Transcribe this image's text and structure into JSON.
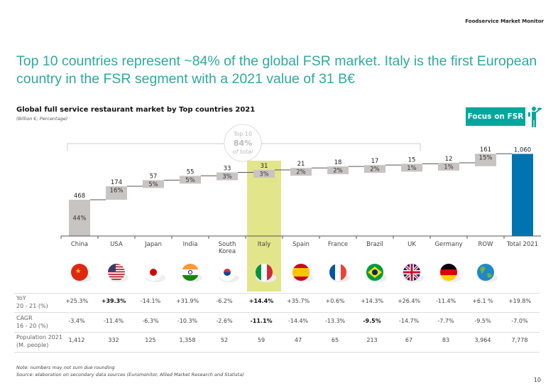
{
  "header": "Foodservice Market Monitor",
  "title": "Top 10 countries represent ~84% of the global FSR market. Italy is the first European country in the FSR segment with a 2021 value of 31 B€",
  "focus_badge": "Focus on FSR",
  "colors": {
    "accent": "#00a79d",
    "step_bar": "#c8c4c2",
    "total_bar": "#0074b0",
    "highlight": "#e3e58a",
    "title": "#2fa99e"
  },
  "chart_data": {
    "type": "waterfall",
    "title": "Global full service restaurant market by Top countries 2021",
    "subtitle": "(Billion €; Percentage)",
    "categories": [
      "China",
      "USA",
      "Japan",
      "India",
      "South Korea",
      "Italy",
      "Spain",
      "France",
      "Brazil",
      "UK",
      "Germany",
      "ROW",
      "Total 2021"
    ],
    "values": [
      468,
      174,
      57,
      55,
      33,
      31,
      21,
      18,
      17,
      15,
      12,
      161,
      1060
    ],
    "value_labels": [
      "468",
      "174",
      "57",
      "55",
      "33",
      "31",
      "21",
      "18",
      "17",
      "15",
      "12",
      "161",
      "1,060"
    ],
    "shares": [
      "44%",
      "16%",
      "5%",
      "5%",
      "3%",
      "3%",
      "2%",
      "2%",
      "2%",
      "1%",
      "1%",
      "15%",
      ""
    ],
    "highlight": "Italy",
    "annotation": {
      "line1": "Top 10",
      "line2": "84%",
      "line3": "of total"
    }
  },
  "flags": [
    "china-flag",
    "usa-flag",
    "japan-flag",
    "india-flag",
    "south-korea-flag",
    "italy-flag",
    "spain-flag",
    "france-flag",
    "brazil-flag",
    "uk-flag",
    "germany-flag",
    "globe",
    "none"
  ],
  "table": {
    "rows": [
      {
        "label1": "YoY",
        "label2": "20 - 21 (%)",
        "values": [
          "+25.3%",
          "+39.3%",
          "-14.1%",
          "+31.9%",
          "-6.2%",
          "+14.4%",
          "+35.7%",
          "+0.6%",
          "+14.3%",
          "+26.4%",
          "-11.4%",
          "+6.1 %",
          "+19.8%"
        ],
        "bold": [
          1,
          5
        ]
      },
      {
        "label1": "CAGR",
        "label2": "16 - 20 (%)",
        "values": [
          "-3.4%",
          "-11.4%",
          "-6.3%",
          "-10.3%",
          "-2.6%",
          "-11.1%",
          "-14.4%",
          "-13.3%",
          "-9.5%",
          "-14.7%",
          "-7.7%",
          "-9.5%",
          "-7.0%"
        ],
        "bold": [
          5,
          8
        ]
      },
      {
        "label1": "Population 2021",
        "label2": "(M. people)",
        "values": [
          "1,412",
          "332",
          "125",
          "1,358",
          "52",
          "59",
          "47",
          "65",
          "213",
          "67",
          "83",
          "3,964",
          "7,778"
        ],
        "bold": []
      }
    ]
  },
  "note": "Note: numbers may not sum due rounding",
  "source": "Source: elaboration on secondary data sources (Euromonitor, Allied Market Research and Statista)",
  "page_number": "10"
}
